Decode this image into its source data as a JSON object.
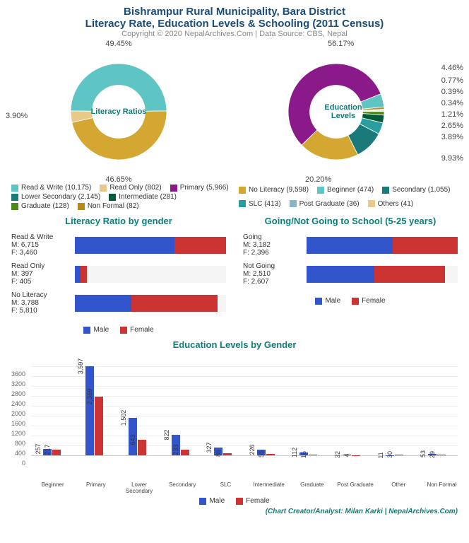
{
  "title_line1": "Bishrampur Rural Municipality, Bara District",
  "title_line2": "Literacy Rate, Education Levels & Schooling (2011 Census)",
  "copyright": "Copyright © 2020 NepalArchives.Com | Data Source: CBS, Nepal",
  "credit": "(Chart Creator/Analyst: Milan Karki | NepalArchives.Com)",
  "literacy_donut": {
    "center_label": "Literacy Ratios",
    "slices": [
      {
        "label": "Read & Write (10,175)",
        "pct": 49.45,
        "pct_label": "49.45%",
        "color": "#5fc4c4"
      },
      {
        "label": "No Literacy (9,598)",
        "pct": 46.65,
        "pct_label": "46.65%",
        "color": "#d4a733"
      },
      {
        "label": "Read Only (802)",
        "pct": 3.9,
        "pct_label": "3.90%",
        "color": "#e8c98a"
      }
    ],
    "legend_extra": [
      {
        "label": "Primary (5,966)",
        "color": "#8a1a8a"
      },
      {
        "label": "Intermediate (281)",
        "color": "#005c38"
      },
      {
        "label": "Non Formal (82)",
        "color": "#b5891a"
      },
      {
        "label": "Lower Secondary (2,145)",
        "color": "#1a7a7a"
      },
      {
        "label": "Graduate (128)",
        "color": "#4a8a1a"
      }
    ]
  },
  "education_donut": {
    "center_label": "Education Levels",
    "slices": [
      {
        "label": "Primary (5,966)",
        "pct": 56.17,
        "pct_label": "56.17%",
        "color": "#8a1a8a"
      },
      {
        "label": "Beginner (474)",
        "pct": 4.46,
        "pct_label": "4.46%",
        "color": "#5fc4c4"
      },
      {
        "label": "Non Formal (82)",
        "pct": 0.77,
        "pct_label": "0.77%",
        "color": "#b5891a"
      },
      {
        "label": "Others (41)",
        "pct": 0.39,
        "pct_label": "0.39%",
        "color": "#e8c98a"
      },
      {
        "label": "Post Graduate (36)",
        "pct": 0.34,
        "pct_label": "0.34%",
        "color": "#8ab5c4"
      },
      {
        "label": "Graduate (128)",
        "pct": 1.21,
        "pct_label": "1.21%",
        "color": "#4a8a1a"
      },
      {
        "label": "Intermediate (281)",
        "pct": 2.65,
        "pct_label": "2.65%",
        "color": "#005c38"
      },
      {
        "label": "SLC (413)",
        "pct": 3.89,
        "pct_label": "3.89%",
        "color": "#2a9d9d"
      },
      {
        "label": "Secondary (1,055)",
        "pct": 9.93,
        "pct_label": "9.93%",
        "color": "#1a7a7a"
      },
      {
        "label": "Lower Secondary (2,145)",
        "pct": 20.2,
        "pct_label": "20.20%",
        "color": "#d4a733"
      }
    ]
  },
  "literacy_gender": {
    "title": "Literacy Ratio by gender",
    "max": 10175,
    "rows": [
      {
        "name": "Read & Write",
        "m": 6715,
        "f": 3460,
        "m_label": "M: 6,715",
        "f_label": "F: 3,460"
      },
      {
        "name": "Read Only",
        "m": 397,
        "f": 405,
        "m_label": "M: 397",
        "f_label": "F: 405"
      },
      {
        "name": "No Literacy",
        "m": 3788,
        "f": 5810,
        "m_label": "M: 3,788",
        "f_label": "F: 5,810"
      }
    ]
  },
  "school_going": {
    "title": "Going/Not Going to School (5-25 years)",
    "max": 5578,
    "rows": [
      {
        "name": "Going",
        "m": 3182,
        "f": 2396,
        "m_label": "M: 3,182",
        "f_label": "F: 2,396"
      },
      {
        "name": "Not Going",
        "m": 2510,
        "f": 2607,
        "m_label": "M: 2,510",
        "f_label": "F: 2,607"
      }
    ]
  },
  "edu_gender": {
    "title": "Education Levels by Gender",
    "ymax": 4000,
    "yticks": [
      0,
      400,
      800,
      1200,
      1600,
      2000,
      2400,
      2800,
      3200,
      3600
    ],
    "groups": [
      {
        "name": "Beginner",
        "m": 257,
        "f": 217
      },
      {
        "name": "Primary",
        "m": 3597,
        "f": 2369
      },
      {
        "name": "Lower Secondary",
        "m": 1502,
        "f": 643
      },
      {
        "name": "Secondary",
        "m": 822,
        "f": 233
      },
      {
        "name": "SLC",
        "m": 327,
        "f": 86
      },
      {
        "name": "Intermediate",
        "m": 226,
        "f": 55
      },
      {
        "name": "Graduate",
        "m": 112,
        "f": 16
      },
      {
        "name": "Post Graduate",
        "m": 32,
        "f": 4
      },
      {
        "name": "Other",
        "m": 11,
        "f": 30
      },
      {
        "name": "Non Formal",
        "m": 53,
        "f": 29
      }
    ]
  },
  "gender_legend": {
    "male": "Male",
    "female": "Female",
    "male_color": "#3355cc",
    "female_color": "#cc3333"
  }
}
